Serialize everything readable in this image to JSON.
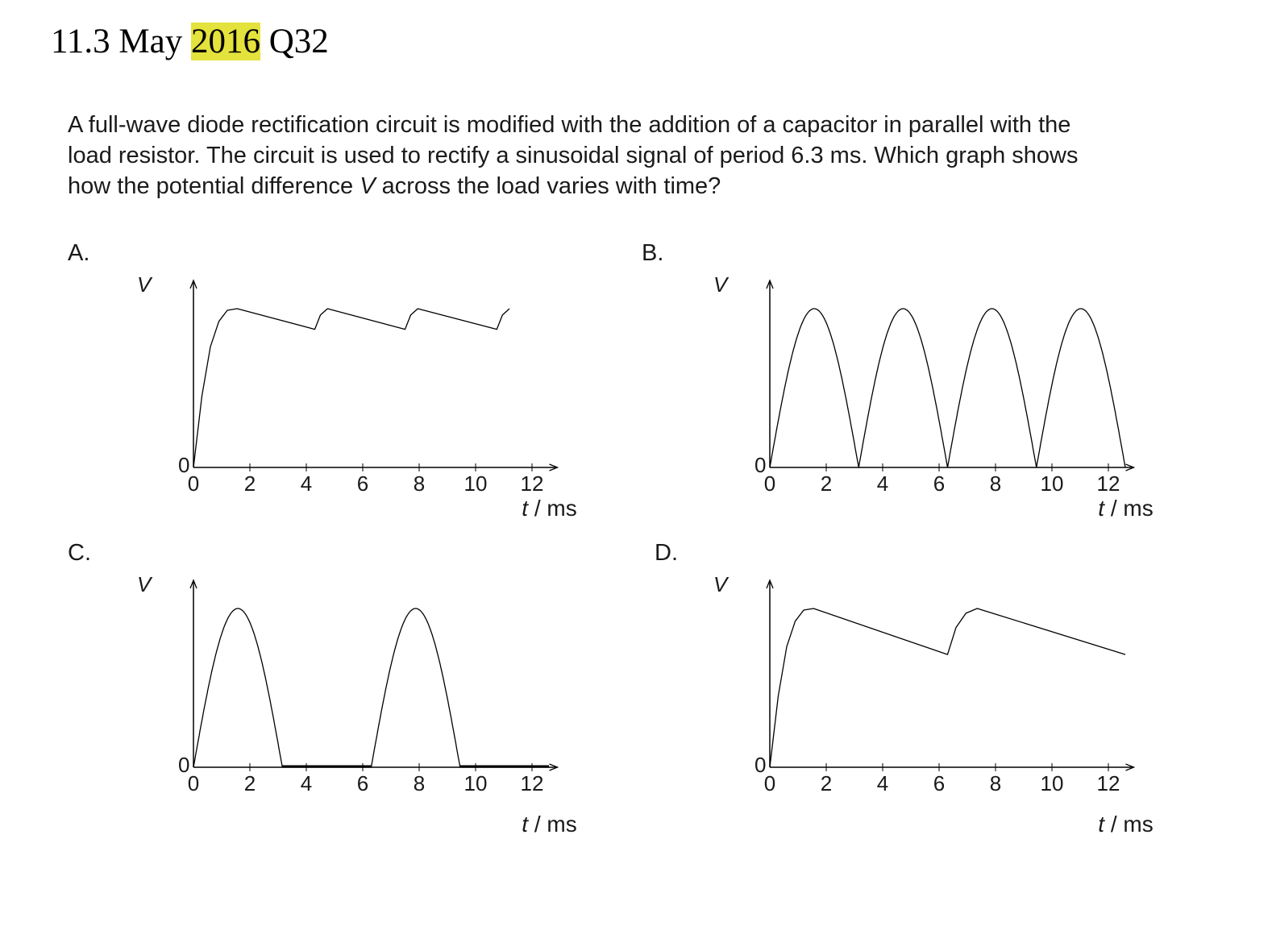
{
  "title": {
    "prefix": "11.3 May ",
    "highlight": "2016",
    "suffix": " Q32"
  },
  "question": {
    "line1": "A full-wave diode rectification circuit is modified with the addition of a capacitor in parallel with the",
    "line2": "load resistor.  The circuit is used to rectify a sinusoidal signal of period 6.3 ms.  Which graph shows",
    "line3_pre": "how the potential difference ",
    "line3_var": "V",
    "line3_post": " across the load varies with time?"
  },
  "options": [
    {
      "key": "A",
      "label": "A."
    },
    {
      "key": "B",
      "label": "B."
    },
    {
      "key": "C",
      "label": "C."
    },
    {
      "key": "D",
      "label": "D."
    }
  ],
  "axis": {
    "y_label": "V",
    "origin_label": "0",
    "x_unit_var": "t",
    "x_unit_rest": " / ms",
    "x_ticks": [
      "0",
      "2",
      "4",
      "6",
      "8",
      "10",
      "12"
    ]
  },
  "chart_data": [
    {
      "type": "line",
      "name": "A",
      "xlim": [
        0,
        12.5
      ],
      "ylim": [
        0,
        1
      ],
      "x_ticks": [
        0,
        2,
        4,
        6,
        8,
        10,
        12
      ],
      "points": [
        [
          0,
          0
        ],
        [
          0.3,
          0.45
        ],
        [
          0.6,
          0.76
        ],
        [
          0.9,
          0.92
        ],
        [
          1.2,
          0.99
        ],
        [
          1.55,
          1.0
        ],
        [
          4.3,
          0.87
        ],
        [
          4.5,
          0.96
        ],
        [
          4.75,
          1.0
        ],
        [
          7.5,
          0.87
        ],
        [
          7.7,
          0.96
        ],
        [
          7.95,
          1.0
        ],
        [
          10.75,
          0.87
        ],
        [
          10.95,
          0.96
        ],
        [
          11.2,
          1.0
        ]
      ]
    },
    {
      "type": "line",
      "name": "B",
      "xlim": [
        0,
        12.5
      ],
      "ylim": [
        0,
        1
      ],
      "x_ticks": [
        0,
        2,
        4,
        6,
        8,
        10,
        12
      ],
      "curve": "abs_sine",
      "half_period": 3.15,
      "x_end": 12.6
    },
    {
      "type": "line",
      "name": "C",
      "xlim": [
        0,
        12.5
      ],
      "ylim": [
        0,
        1
      ],
      "x_ticks": [
        0,
        2,
        4,
        6,
        8,
        10,
        12
      ],
      "curve": "half_wave",
      "period": 6.3,
      "x_end": 12.6
    },
    {
      "type": "line",
      "name": "D",
      "xlim": [
        0,
        12.5
      ],
      "ylim": [
        0,
        1
      ],
      "x_ticks": [
        0,
        2,
        4,
        6,
        8,
        10,
        12
      ],
      "points": [
        [
          0,
          0
        ],
        [
          0.3,
          0.45
        ],
        [
          0.6,
          0.76
        ],
        [
          0.9,
          0.92
        ],
        [
          1.2,
          0.99
        ],
        [
          1.55,
          1.0
        ],
        [
          6.3,
          0.71
        ],
        [
          6.6,
          0.88
        ],
        [
          6.95,
          0.97
        ],
        [
          7.35,
          1.0
        ],
        [
          12.6,
          0.71
        ]
      ]
    }
  ]
}
